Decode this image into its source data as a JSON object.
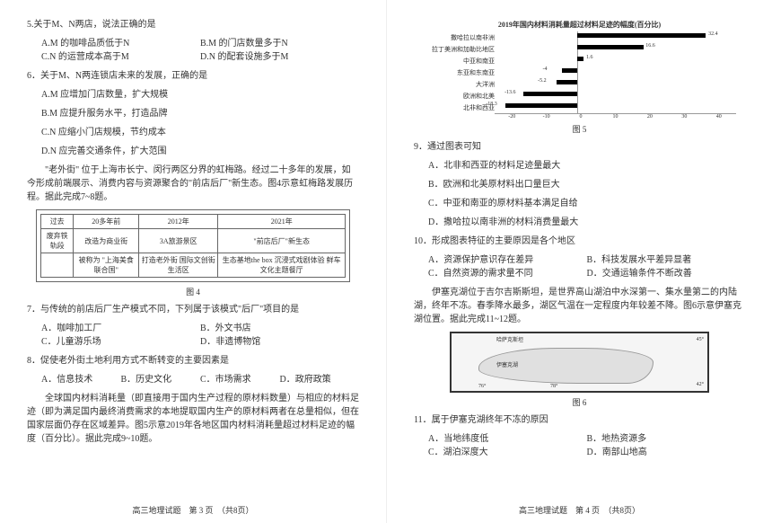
{
  "left": {
    "q5": {
      "stem": "5.关于M、N两店，说法正确的是",
      "opts": [
        "A.M 的咖啡品质低于N",
        "B.M 的门店数量多于N",
        "C.N 的运营成本高于M",
        "D.N 的配套设施多于M"
      ]
    },
    "q6": {
      "stem": "6．关于M、N两连锁店未来的发展，正确的是",
      "opts": [
        "A.M 应增加门店数量，扩大规模",
        "B.M 应提升服务水平，打造品牌",
        "C.N 应缩小门店规模，节约成本",
        "D.N 应完善交通条件，扩大范围"
      ]
    },
    "passage1": "　　\"老外街\" 位于上海市长宁、闵行两区分界的虹梅路。经过二十多年的发展，如今形成前端展示、消费内容与资源聚合的\"前店后厂\"新生态。图4示意虹梅路发展历程。据此完成7~8题。",
    "fig4": {
      "headers": [
        "过去",
        "20多年前",
        "2012年",
        "2021年"
      ],
      "row1": [
        "废弃铁轨段",
        "改造为商业街",
        "3A旅游景区",
        "\"前店后厂\"新生态"
      ],
      "row2": [
        "",
        "被称为\n\"上海美食联合国\"",
        "打造老外街\n国际文创街\n生活区",
        "生态基地the box\n沉浸式戏剧体验\n鲜车文化主题餐厅"
      ],
      "caption": "图 4"
    },
    "q7": {
      "stem": "7．与传统的前店后厂生产模式不同，下列属于该模式\"后厂\"项目的是",
      "opts": [
        "A．咖啡加工厂",
        "B．外文书店",
        "C．儿童游乐场",
        "D．非遗博物馆"
      ]
    },
    "q8": {
      "stem": "8．促使老外街土地利用方式不断转变的主要因素是",
      "opts": [
        "A．信息技术",
        "B．历史文化",
        "C．市场需求",
        "D．政府政策"
      ]
    },
    "passage2": "　　全球国内材料消耗量（即直接用于国内生产过程的原材料数量）与相应的材料足迹（即为满足国内最终消费需求的本地提取国内生产的原材料两者在总量相似，但在国家层面仍存在区域差异。图5示意2019年各地区国内材料消耗量超过材料足迹的幅度（百分比）。据此完成9~10题。",
    "footer": "高三地理试题　第 3 页　（共8页）"
  },
  "right": {
    "fig5": {
      "title": "2019年国内材料消耗量超过材料足迹的幅度(百分比)",
      "regions": [
        {
          "label": "撒哈拉以南非洲",
          "v": 32.4
        },
        {
          "label": "拉丁美洲和加勒比地区",
          "v": 16.6
        },
        {
          "label": "中亚和南亚",
          "v": 1.6
        },
        {
          "label": "东亚和东南亚",
          "v": -4.0
        },
        {
          "label": "大洋洲",
          "v": -5.2
        },
        {
          "label": "欧洲和北美",
          "v": -13.6
        },
        {
          "label": "北非和西亚",
          "v": -18.3
        }
      ],
      "xticks": [
        "-20",
        "-10",
        "0",
        "10",
        "20",
        "30",
        "40"
      ],
      "caption": "图 5"
    },
    "q9": {
      "stem": "9．通过图表可知",
      "opts": [
        "A．北非和西亚的材料足迹量最大",
        "B．欧洲和北美原材料出口量巨大",
        "C．中亚和南亚的原材料基本满足自给",
        "D．撒哈拉以南非洲的材料消费量最大"
      ]
    },
    "q10": {
      "stem": "10．形成图表特征的主要原因是各个地区",
      "opts": [
        "A．资源保护意识存在差异",
        "B．科技发展水平差异显著",
        "C．自然资源的需求量不同",
        "D．交通运输条件不断改善"
      ]
    },
    "passage3": "　　伊塞克湖位于吉尔吉斯斯坦，是世界高山湖泊中水深第一、集水量第二的内陆湖，终年不冻。春季降水最多，湖区气温在一定程度内年较差不降。图6示意伊塞克湖位置。据此完成11~12题。",
    "fig6": {
      "caption": "图 6",
      "labels": [
        "哈萨克斯坦",
        "伊塞克湖",
        "45°",
        "42°",
        "76°",
        "78°"
      ]
    },
    "q11": {
      "stem": "11．属于伊塞克湖终年不冻的原因",
      "opts": [
        "A．当地纬度低",
        "B．地热资源多",
        "C．湖泊深度大",
        "D．南部山地高"
      ]
    },
    "footer": "高三地理试题　第 4 页　（共8页）"
  }
}
